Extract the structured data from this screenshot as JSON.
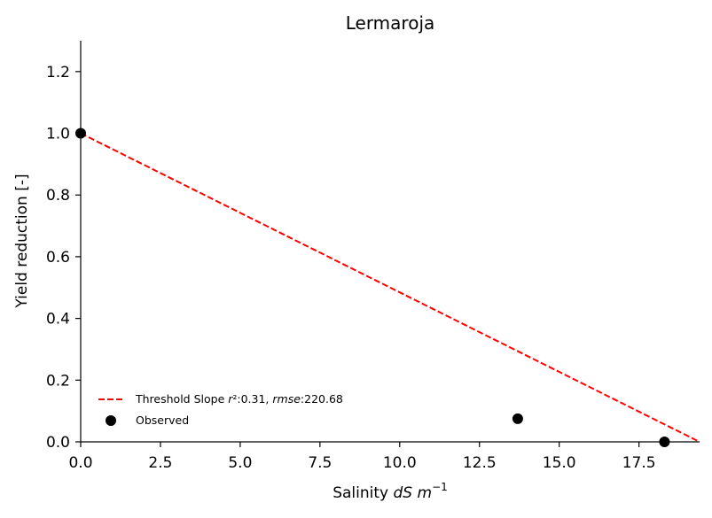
{
  "chart_data": {
    "type": "scatter",
    "title": "Lermaroja",
    "xlabel": "Salinity ",
    "xlabel_math": "dS m",
    "xlabel_sup": "−1",
    "ylabel": "Yield reduction [-]",
    "xlim": [
      0,
      19.4
    ],
    "ylim": [
      0,
      1.3
    ],
    "x_ticks": [
      0.0,
      2.5,
      5.0,
      7.5,
      10.0,
      12.5,
      15.0,
      17.5
    ],
    "x_tick_labels": [
      "0.0",
      "2.5",
      "5.0",
      "7.5",
      "10.0",
      "12.5",
      "15.0",
      "17.5"
    ],
    "y_ticks": [
      0.0,
      0.2,
      0.4,
      0.6,
      0.8,
      1.0,
      1.2
    ],
    "y_tick_labels": [
      "0.0",
      "0.2",
      "0.4",
      "0.6",
      "0.8",
      "1.0",
      "1.2"
    ],
    "grid": false,
    "legend_position": "lower-left",
    "series": [
      {
        "name": "Threshold Slope",
        "legend_label": "Threshold Slope r²:0.31, rmse:220.68",
        "kind": "line",
        "style": "dashed",
        "color": "#ff0000",
        "x": [
          0.0,
          19.4
        ],
        "y": [
          1.0,
          0.0
        ]
      },
      {
        "name": "Observed",
        "legend_label": "Observed",
        "kind": "scatter",
        "color": "#000000",
        "x": [
          0.0,
          13.7,
          18.3
        ],
        "y": [
          1.0,
          0.075,
          0.0
        ]
      }
    ],
    "legend": {
      "line_prefix": "Threshold Slope ",
      "r2_sym": "r",
      "r2_sup": "²",
      "r2_val": ":0.31, ",
      "rmse_sym": "rmse",
      "rmse_val": ":220.68",
      "scatter_label": "Observed"
    }
  }
}
